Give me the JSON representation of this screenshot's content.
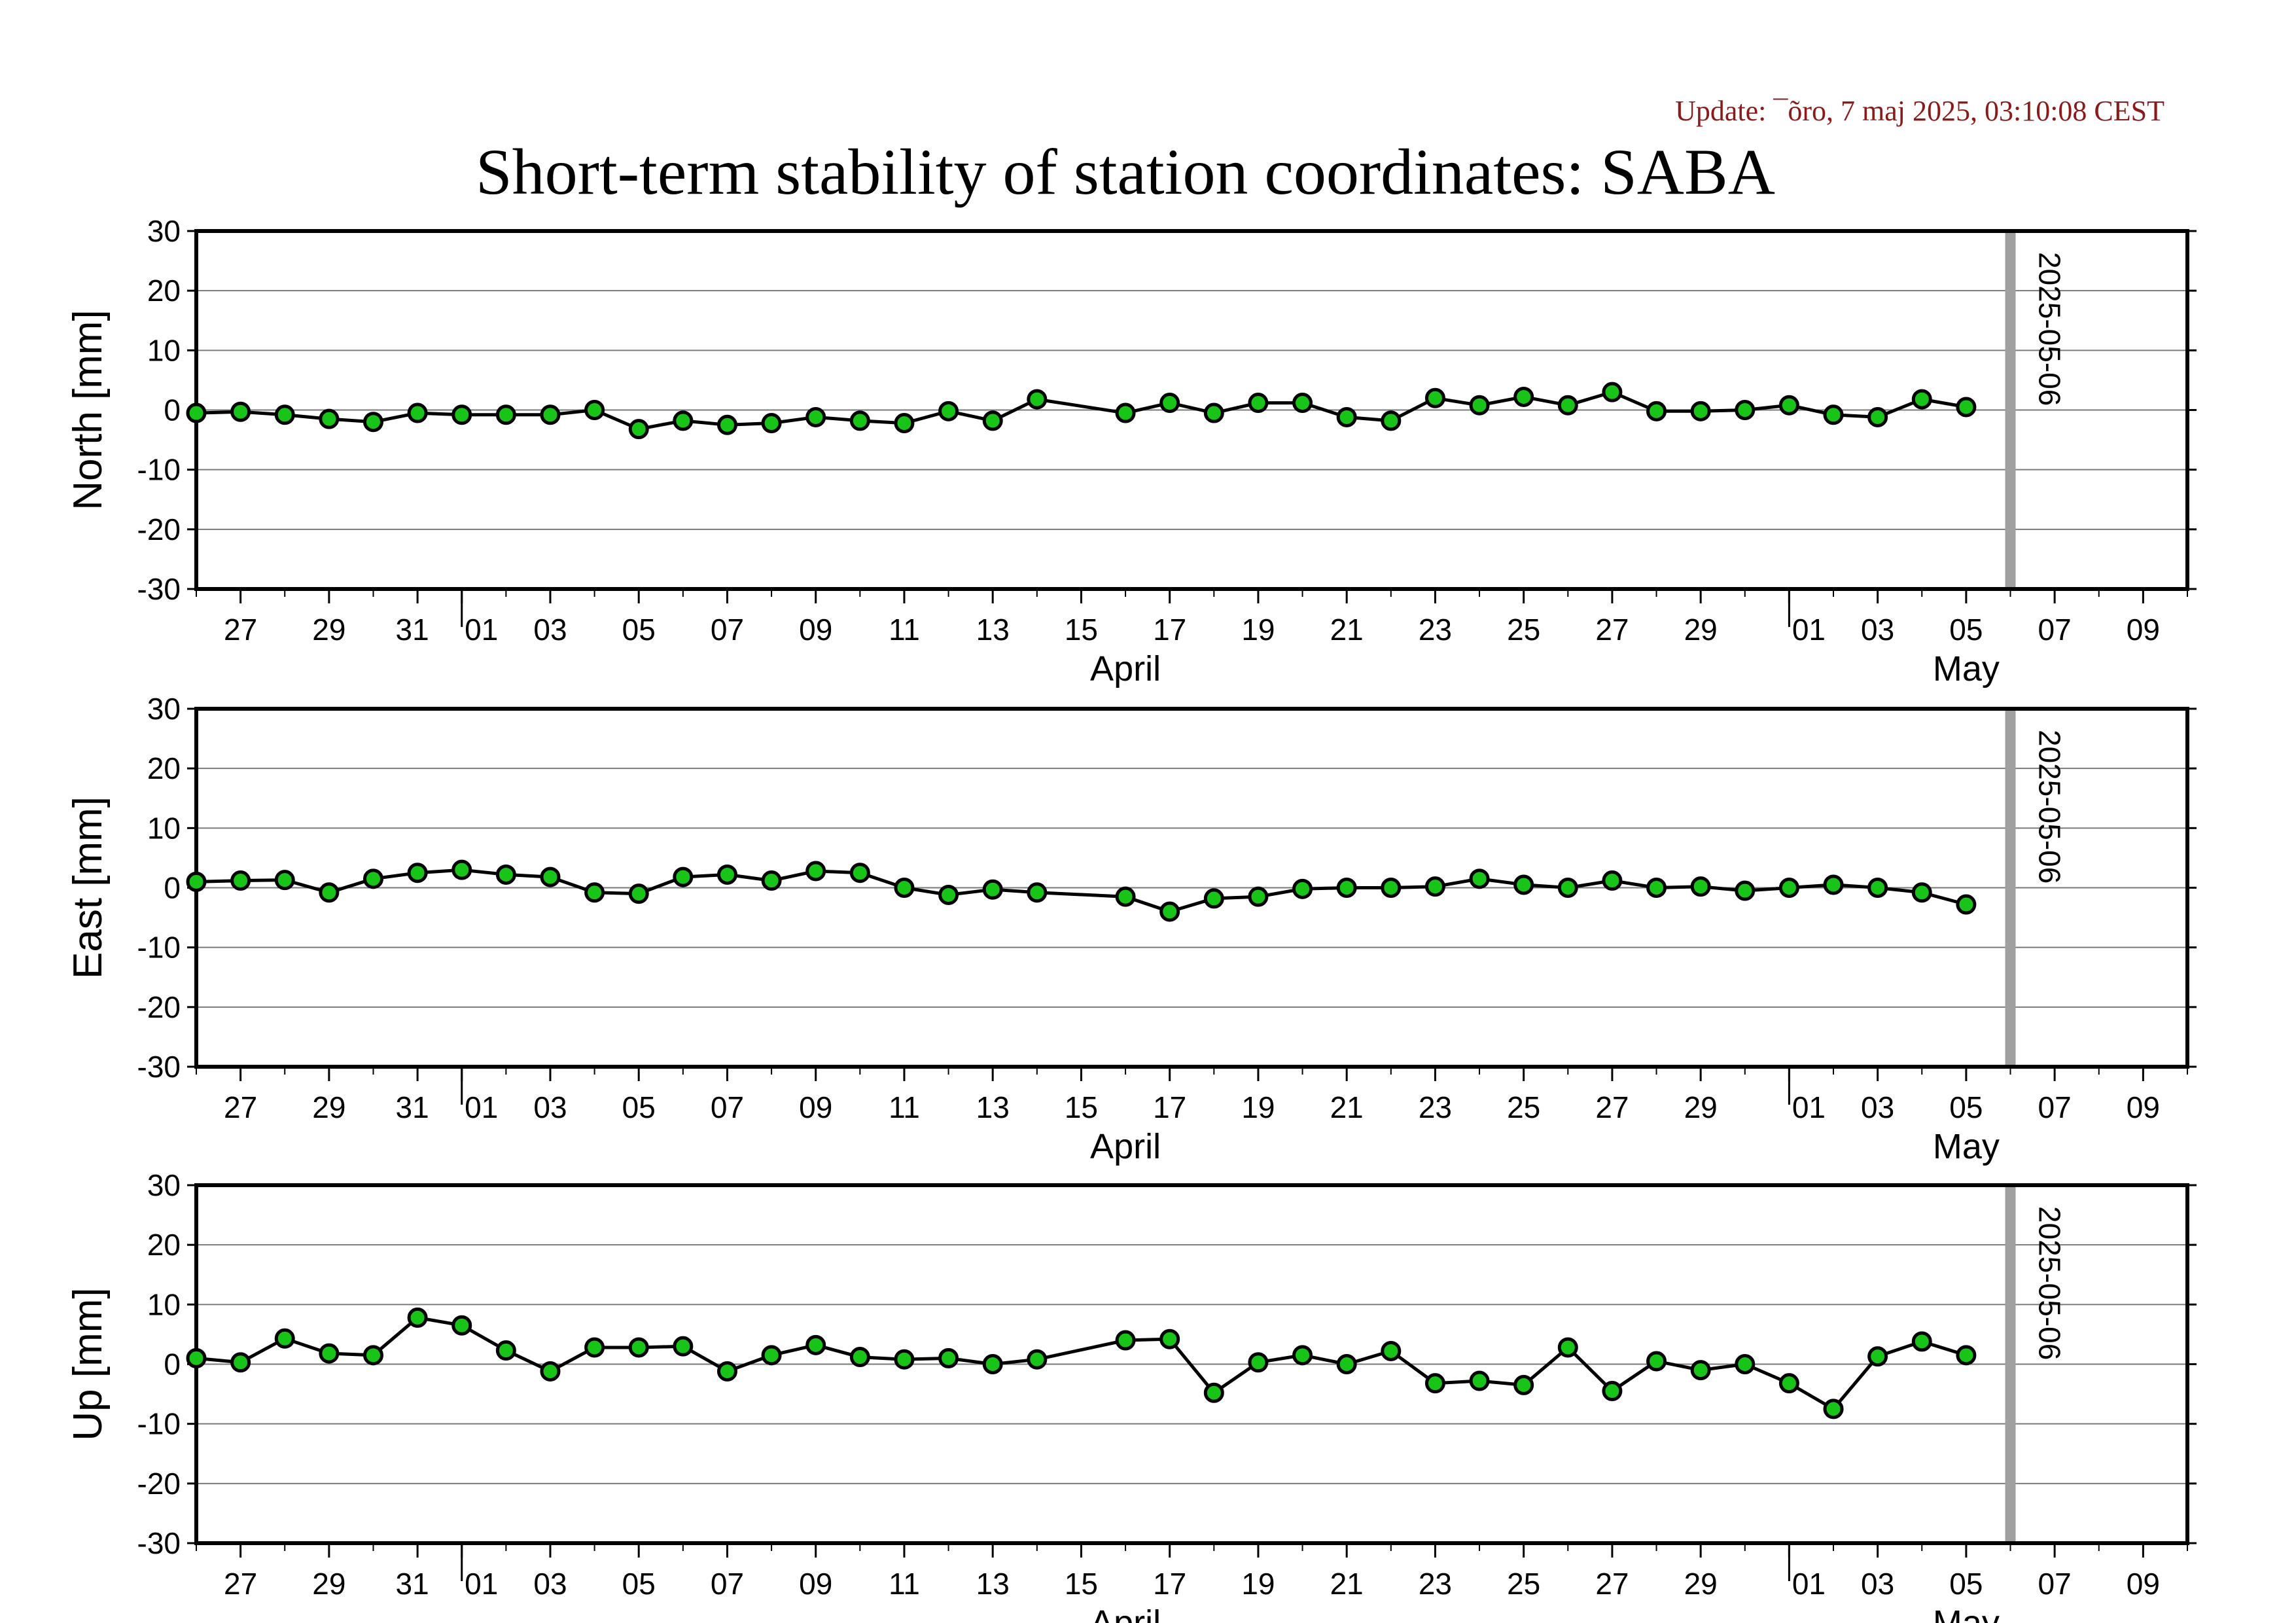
{
  "header": {
    "update_text": "Update: ¯õro, 7 maj 2025, 03:10:08 CEST",
    "title": "Short-term stability of station coordinates: SABA"
  },
  "chart_data": {
    "type": "line",
    "station": "SABA",
    "x_start": "2025-03-26",
    "x_end": "2025-05-10",
    "x_tick_labels": [
      {
        "date": "2025-03-27",
        "label": "27"
      },
      {
        "date": "2025-03-29",
        "label": "29"
      },
      {
        "date": "2025-03-31",
        "label": "31"
      },
      {
        "date": "2025-04-01",
        "label": "01"
      },
      {
        "date": "2025-04-03",
        "label": "03"
      },
      {
        "date": "2025-04-05",
        "label": "05"
      },
      {
        "date": "2025-04-07",
        "label": "07"
      },
      {
        "date": "2025-04-09",
        "label": "09"
      },
      {
        "date": "2025-04-11",
        "label": "11"
      },
      {
        "date": "2025-04-13",
        "label": "13"
      },
      {
        "date": "2025-04-15",
        "label": "15"
      },
      {
        "date": "2025-04-17",
        "label": "17"
      },
      {
        "date": "2025-04-19",
        "label": "19"
      },
      {
        "date": "2025-04-21",
        "label": "21"
      },
      {
        "date": "2025-04-23",
        "label": "23"
      },
      {
        "date": "2025-04-25",
        "label": "25"
      },
      {
        "date": "2025-04-27",
        "label": "27"
      },
      {
        "date": "2025-04-29",
        "label": "29"
      },
      {
        "date": "2025-05-01",
        "label": "01"
      },
      {
        "date": "2025-05-03",
        "label": "03"
      },
      {
        "date": "2025-05-05",
        "label": "05"
      },
      {
        "date": "2025-05-07",
        "label": "07"
      },
      {
        "date": "2025-05-09",
        "label": "09"
      }
    ],
    "month_labels": [
      {
        "date": "2025-04-16",
        "label": "April"
      },
      {
        "date": "2025-05-05",
        "label": "May"
      }
    ],
    "month_boundaries": [
      "2025-04-01",
      "2025-05-01"
    ],
    "marker": {
      "date": "2025-05-06",
      "label": "2025-05-06",
      "color": "#a0a0a0"
    },
    "line_color": "#000000",
    "point_fill": "#18c418",
    "point_stroke": "#000000",
    "grid": true,
    "panels": [
      {
        "ylabel": "North [mm]",
        "ylim": [
          -30,
          30
        ],
        "yticks": [
          30,
          20,
          10,
          0,
          -10,
          -20,
          -30
        ],
        "points": [
          [
            "2025-03-26",
            -0.5
          ],
          [
            "2025-03-27",
            -0.3
          ],
          [
            "2025-03-28",
            -0.8
          ],
          [
            "2025-03-29",
            -1.5
          ],
          [
            "2025-03-30",
            -2.0
          ],
          [
            "2025-03-31",
            -0.5
          ],
          [
            "2025-04-01",
            -0.8
          ],
          [
            "2025-04-02",
            -0.8
          ],
          [
            "2025-04-03",
            -0.8
          ],
          [
            "2025-04-04",
            0.0
          ],
          [
            "2025-04-05",
            -3.2
          ],
          [
            "2025-04-06",
            -1.8
          ],
          [
            "2025-04-07",
            -2.5
          ],
          [
            "2025-04-08",
            -2.2
          ],
          [
            "2025-04-09",
            -1.2
          ],
          [
            "2025-04-10",
            -1.8
          ],
          [
            "2025-04-11",
            -2.2
          ],
          [
            "2025-04-12",
            -0.2
          ],
          [
            "2025-04-13",
            -1.8
          ],
          [
            "2025-04-14",
            1.8
          ],
          [
            "2025-04-16",
            -0.5
          ],
          [
            "2025-04-17",
            1.2
          ],
          [
            "2025-04-18",
            -0.5
          ],
          [
            "2025-04-19",
            1.2
          ],
          [
            "2025-04-20",
            1.2
          ],
          [
            "2025-04-21",
            -1.2
          ],
          [
            "2025-04-22",
            -1.8
          ],
          [
            "2025-04-23",
            2.0
          ],
          [
            "2025-04-24",
            0.8
          ],
          [
            "2025-04-25",
            2.2
          ],
          [
            "2025-04-26",
            0.8
          ],
          [
            "2025-04-27",
            3.0
          ],
          [
            "2025-04-28",
            -0.2
          ],
          [
            "2025-04-29",
            -0.2
          ],
          [
            "2025-04-30",
            0.0
          ],
          [
            "2025-05-01",
            0.8
          ],
          [
            "2025-05-02",
            -0.8
          ],
          [
            "2025-05-03",
            -1.2
          ],
          [
            "2025-05-04",
            1.8
          ],
          [
            "2025-05-05",
            0.5
          ]
        ]
      },
      {
        "ylabel": "East [mm]",
        "ylim": [
          -30,
          30
        ],
        "yticks": [
          30,
          20,
          10,
          0,
          -10,
          -20,
          -30
        ],
        "points": [
          [
            "2025-03-26",
            1.0
          ],
          [
            "2025-03-27",
            1.2
          ],
          [
            "2025-03-28",
            1.3
          ],
          [
            "2025-03-29",
            -0.8
          ],
          [
            "2025-03-30",
            1.5
          ],
          [
            "2025-03-31",
            2.5
          ],
          [
            "2025-04-01",
            3.0
          ],
          [
            "2025-04-02",
            2.2
          ],
          [
            "2025-04-03",
            1.8
          ],
          [
            "2025-04-04",
            -0.8
          ],
          [
            "2025-04-05",
            -1.0
          ],
          [
            "2025-04-06",
            1.8
          ],
          [
            "2025-04-07",
            2.2
          ],
          [
            "2025-04-08",
            1.2
          ],
          [
            "2025-04-09",
            2.8
          ],
          [
            "2025-04-10",
            2.5
          ],
          [
            "2025-04-11",
            0.0
          ],
          [
            "2025-04-12",
            -1.2
          ],
          [
            "2025-04-13",
            -0.3
          ],
          [
            "2025-04-14",
            -0.8
          ],
          [
            "2025-04-16",
            -1.5
          ],
          [
            "2025-04-17",
            -4.0
          ],
          [
            "2025-04-18",
            -1.8
          ],
          [
            "2025-04-19",
            -1.5
          ],
          [
            "2025-04-20",
            -0.2
          ],
          [
            "2025-04-21",
            0.0
          ],
          [
            "2025-04-22",
            0.0
          ],
          [
            "2025-04-23",
            0.2
          ],
          [
            "2025-04-24",
            1.5
          ],
          [
            "2025-04-25",
            0.5
          ],
          [
            "2025-04-26",
            0.0
          ],
          [
            "2025-04-27",
            1.2
          ],
          [
            "2025-04-28",
            0.0
          ],
          [
            "2025-04-29",
            0.2
          ],
          [
            "2025-04-30",
            -0.5
          ],
          [
            "2025-05-01",
            0.0
          ],
          [
            "2025-05-02",
            0.5
          ],
          [
            "2025-05-03",
            0.0
          ],
          [
            "2025-05-04",
            -0.8
          ],
          [
            "2025-05-05",
            -2.8
          ]
        ]
      },
      {
        "ylabel": "Up [mm]",
        "ylim": [
          -30,
          30
        ],
        "yticks": [
          30,
          20,
          10,
          0,
          -10,
          -20,
          -30
        ],
        "points": [
          [
            "2025-03-26",
            1.0
          ],
          [
            "2025-03-27",
            0.3
          ],
          [
            "2025-03-28",
            4.3
          ],
          [
            "2025-03-29",
            1.8
          ],
          [
            "2025-03-30",
            1.5
          ],
          [
            "2025-03-31",
            7.8
          ],
          [
            "2025-04-01",
            6.5
          ],
          [
            "2025-04-02",
            2.3
          ],
          [
            "2025-04-03",
            -1.2
          ],
          [
            "2025-04-04",
            2.8
          ],
          [
            "2025-04-05",
            2.8
          ],
          [
            "2025-04-06",
            3.0
          ],
          [
            "2025-04-07",
            -1.2
          ],
          [
            "2025-04-08",
            1.5
          ],
          [
            "2025-04-09",
            3.2
          ],
          [
            "2025-04-10",
            1.2
          ],
          [
            "2025-04-11",
            0.8
          ],
          [
            "2025-04-12",
            1.0
          ],
          [
            "2025-04-13",
            0.0
          ],
          [
            "2025-04-14",
            0.8
          ],
          [
            "2025-04-16",
            4.0
          ],
          [
            "2025-04-17",
            4.2
          ],
          [
            "2025-04-18",
            -4.8
          ],
          [
            "2025-04-19",
            0.3
          ],
          [
            "2025-04-20",
            1.5
          ],
          [
            "2025-04-21",
            0.0
          ],
          [
            "2025-04-22",
            2.2
          ],
          [
            "2025-04-23",
            -3.2
          ],
          [
            "2025-04-24",
            -2.8
          ],
          [
            "2025-04-25",
            -3.5
          ],
          [
            "2025-04-26",
            2.8
          ],
          [
            "2025-04-27",
            -4.5
          ],
          [
            "2025-04-28",
            0.5
          ],
          [
            "2025-04-29",
            -1.0
          ],
          [
            "2025-04-30",
            0.0
          ],
          [
            "2025-05-01",
            -3.2
          ],
          [
            "2025-05-02",
            -7.5
          ],
          [
            "2025-05-03",
            1.3
          ],
          [
            "2025-05-04",
            3.8
          ],
          [
            "2025-05-05",
            1.5
          ]
        ]
      }
    ]
  }
}
